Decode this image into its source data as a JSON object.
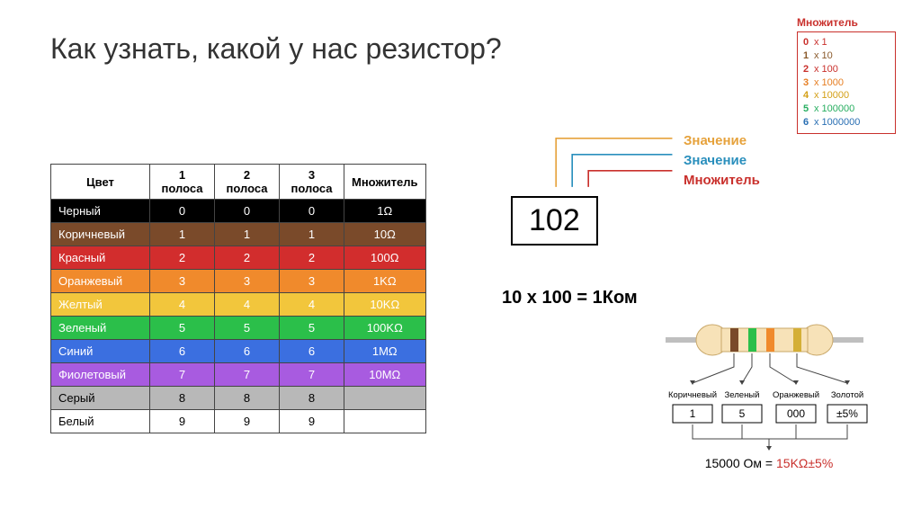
{
  "title": "Как узнать, какой у нас резистор?",
  "multiplier_box": {
    "title": "Множитель",
    "title_color": "#c9302c",
    "rows": [
      {
        "digit": "0",
        "text": "x 1",
        "color": "#c9302c"
      },
      {
        "digit": "1",
        "text": "x 10",
        "color": "#8a5a2b"
      },
      {
        "digit": "2",
        "text": "x 100",
        "color": "#c9302c"
      },
      {
        "digit": "3",
        "text": "x 1000",
        "color": "#e67e22"
      },
      {
        "digit": "4",
        "text": "x 10000",
        "color": "#d4a017"
      },
      {
        "digit": "5",
        "text": "x 100000",
        "color": "#27ae60"
      },
      {
        "digit": "6",
        "text": "x 1000000",
        "color": "#2a6fb3"
      }
    ]
  },
  "table": {
    "columns": [
      "Цвет",
      "1 полоса",
      "2 полоса",
      "3 полоса",
      "Множитель"
    ],
    "rows": [
      {
        "name": "Черный",
        "b1": "0",
        "b2": "0",
        "b3": "0",
        "mult": "1Ω",
        "bg": "#000000",
        "fg": "#ffffff"
      },
      {
        "name": "Коричневый",
        "b1": "1",
        "b2": "1",
        "b3": "1",
        "mult": "10Ω",
        "bg": "#7a4a2a",
        "fg": "#ffffff"
      },
      {
        "name": "Красный",
        "b1": "2",
        "b2": "2",
        "b3": "2",
        "mult": "100Ω",
        "bg": "#d22d2d",
        "fg": "#ffffff"
      },
      {
        "name": "Оранжевый",
        "b1": "3",
        "b2": "3",
        "b3": "3",
        "mult": "1KΩ",
        "bg": "#f08a2c",
        "fg": "#ffffff"
      },
      {
        "name": "Желтый",
        "b1": "4",
        "b2": "4",
        "b3": "4",
        "mult": "10KΩ",
        "bg": "#f2c63c",
        "fg": "#ffffff"
      },
      {
        "name": "Зеленый",
        "b1": "5",
        "b2": "5",
        "b3": "5",
        "mult": "100KΩ",
        "bg": "#2bbf4a",
        "fg": "#ffffff"
      },
      {
        "name": "Синий",
        "b1": "6",
        "b2": "6",
        "b3": "6",
        "mult": "1MΩ",
        "bg": "#3b6fe0",
        "fg": "#ffffff"
      },
      {
        "name": "Фиолетовый",
        "b1": "7",
        "b2": "7",
        "b3": "7",
        "mult": "10MΩ",
        "bg": "#a85be0",
        "fg": "#ffffff"
      },
      {
        "name": "Серый",
        "b1": "8",
        "b2": "8",
        "b3": "8",
        "mult": "",
        "bg": "#b8b8b8",
        "fg": "#000000"
      },
      {
        "name": "Белый",
        "b1": "9",
        "b2": "9",
        "b3": "9",
        "mult": "",
        "bg": "#ffffff",
        "fg": "#000000"
      }
    ]
  },
  "smd": {
    "code": "102",
    "labels": {
      "d1": {
        "text": "Значение",
        "color": "#e6a23c"
      },
      "d2": {
        "text": "Значение",
        "color": "#2a8fbd"
      },
      "d3": {
        "text": "Множитель",
        "color": "#c9302c"
      }
    },
    "calc": "10 x 100 = 1Ком"
  },
  "resistor": {
    "body_color": "#f7e2b8",
    "lead_color": "#bfbfbf",
    "bands": [
      {
        "color": "#7a4a2a",
        "label": "Коричневый",
        "value": "1"
      },
      {
        "color": "#2bbf4a",
        "label": "Зеленый",
        "value": "5"
      },
      {
        "color": "#f08a2c",
        "label": "Оранжевый",
        "value": "000"
      },
      {
        "color": "#d4af37",
        "label": "Золотой",
        "value": "±5%"
      }
    ],
    "result_prefix": "15000 Ом = ",
    "result_value": "15KΩ±5%",
    "result_value_color": "#c9302c"
  }
}
